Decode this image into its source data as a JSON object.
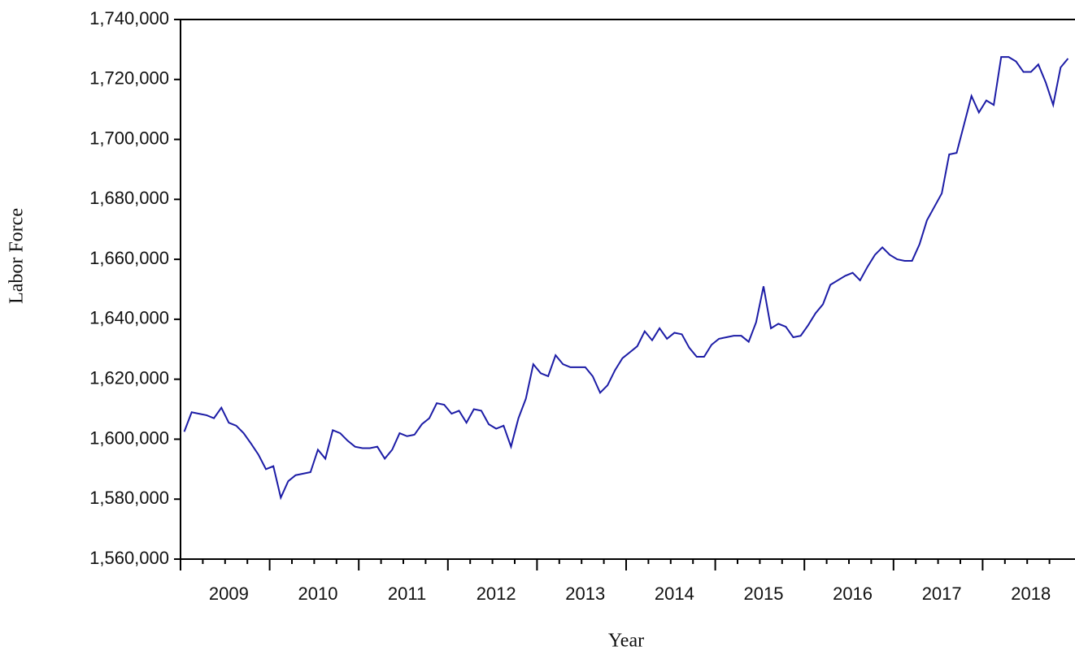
{
  "chart_data": {
    "type": "line",
    "x_label": "Year",
    "y_label": "Labor Force",
    "categories": [
      null,
      null,
      null,
      null,
      null,
      null,
      "2009",
      null,
      null,
      null,
      null,
      null,
      null,
      null,
      null,
      null,
      null,
      null,
      "2010",
      null,
      null,
      null,
      null,
      null,
      null,
      null,
      null,
      null,
      null,
      null,
      "2011",
      null,
      null,
      null,
      null,
      null,
      null,
      null,
      null,
      null,
      null,
      null,
      "2012",
      null,
      null,
      null,
      null,
      null,
      null,
      null,
      null,
      null,
      null,
      null,
      "2013",
      null,
      null,
      null,
      null,
      null,
      null,
      null,
      null,
      null,
      null,
      null,
      "2014",
      null,
      null,
      null,
      null,
      null,
      null,
      null,
      null,
      null,
      null,
      null,
      "2015",
      null,
      null,
      null,
      null,
      null,
      null,
      null,
      null,
      null,
      null,
      null,
      "2016",
      null,
      null,
      null,
      null,
      null,
      null,
      null,
      null,
      null,
      null,
      null,
      "2017",
      null,
      null,
      null,
      null,
      null,
      null,
      null,
      null,
      null,
      null,
      null,
      "2018",
      null,
      null,
      null,
      null,
      null
    ],
    "series": [
      {
        "name": "Labor Force",
        "color": "#1c1ca6",
        "values": [
          1602500,
          1609000,
          1608500,
          1608000,
          1607000,
          1610500,
          1605500,
          1604500,
          1602000,
          1598500,
          1594800,
          1590000,
          1591000,
          1580500,
          1586000,
          1588000,
          1588500,
          1589000,
          1596500,
          1593500,
          1603000,
          1602000,
          1599500,
          1597500,
          1597000,
          1597000,
          1597500,
          1593500,
          1596500,
          1602000,
          1601000,
          1601500,
          1605000,
          1607000,
          1612000,
          1611500,
          1608500,
          1609500,
          1605500,
          1610000,
          1609500,
          1605000,
          1603500,
          1604500,
          1597500,
          1607000,
          1613500,
          1625000,
          1622000,
          1621000,
          1628000,
          1625000,
          1624000,
          1624000,
          1624000,
          1621000,
          1615500,
          1618000,
          1623000,
          1627000,
          1629000,
          1631000,
          1636000,
          1633000,
          1637000,
          1633500,
          1635500,
          1635000,
          1630500,
          1627500,
          1627500,
          1631500,
          1633500,
          1634000,
          1634500,
          1634500,
          1632500,
          1639000,
          1651000,
          1637000,
          1638500,
          1637500,
          1634000,
          1634500,
          1638000,
          1642000,
          1645000,
          1651500,
          1653000,
          1654500,
          1655500,
          1653000,
          1657500,
          1661500,
          1664000,
          1661500,
          1660000,
          1659500,
          1659500,
          1665000,
          1673000,
          1677500,
          1682000,
          1695000,
          1695500,
          1705000,
          1714500,
          1709000,
          1713000,
          1711500,
          1727500,
          1727500,
          1726000,
          1722500,
          1722500,
          1725000,
          1719000,
          1711500,
          1724000,
          1727000
        ]
      }
    ],
    "ylim": [
      1560000,
      1740000
    ],
    "yticks": [
      {
        "value": 1560000,
        "label": "1,560,000"
      },
      {
        "value": 1580000,
        "label": "1,580,000"
      },
      {
        "value": 1600000,
        "label": "1,600,000"
      },
      {
        "value": 1620000,
        "label": "1,620,000"
      },
      {
        "value": 1640000,
        "label": "1,640,000"
      },
      {
        "value": 1660000,
        "label": "1,660,000"
      },
      {
        "value": 1680000,
        "label": "1,680,000"
      },
      {
        "value": 1700000,
        "label": "1,700,000"
      },
      {
        "value": 1720000,
        "label": "1,720,000"
      },
      {
        "value": 1740000,
        "label": "1,740,000"
      }
    ]
  }
}
